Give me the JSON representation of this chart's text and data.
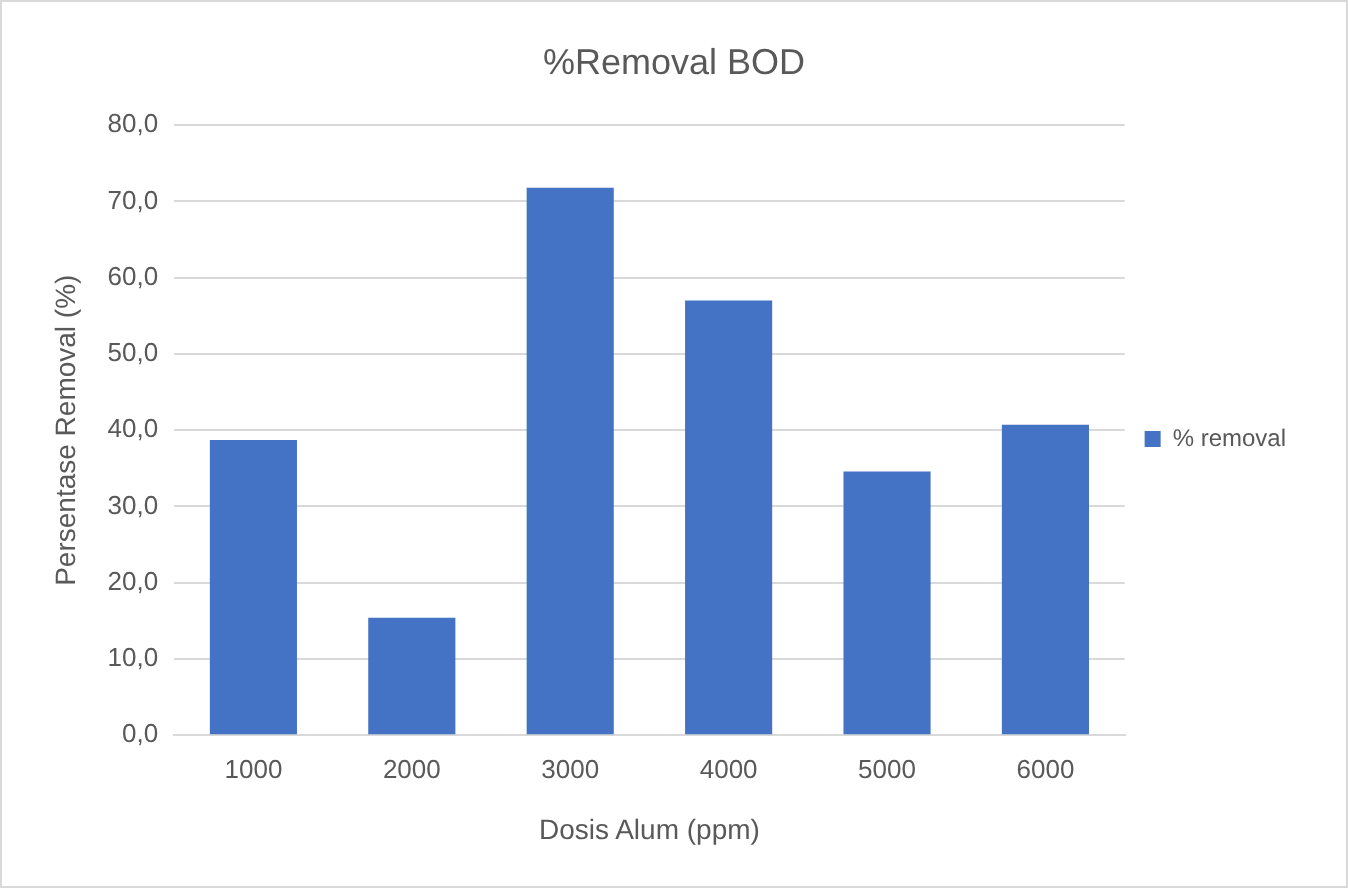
{
  "chart_data": {
    "type": "bar",
    "title": "%Removal BOD",
    "xlabel": "Dosis Alum (ppm)",
    "ylabel": "Persentase Removal (%)",
    "categories": [
      "1000",
      "2000",
      "3000",
      "4000",
      "5000",
      "6000"
    ],
    "series": [
      {
        "name": "% removal",
        "color": "#4472c4",
        "values": [
          38.7,
          15.4,
          71.8,
          57.0,
          34.6,
          40.7
        ]
      }
    ],
    "ylim": [
      0,
      80
    ],
    "yticks": [
      {
        "value": 0,
        "label": "0,0"
      },
      {
        "value": 10,
        "label": "10,0"
      },
      {
        "value": 20,
        "label": "20,0"
      },
      {
        "value": 30,
        "label": "30,0"
      },
      {
        "value": 40,
        "label": "40,0"
      },
      {
        "value": 50,
        "label": "50,0"
      },
      {
        "value": 60,
        "label": "60,0"
      },
      {
        "value": 70,
        "label": "70,0"
      },
      {
        "value": 80,
        "label": "80,0"
      }
    ],
    "grid": "y",
    "legend": "right"
  }
}
